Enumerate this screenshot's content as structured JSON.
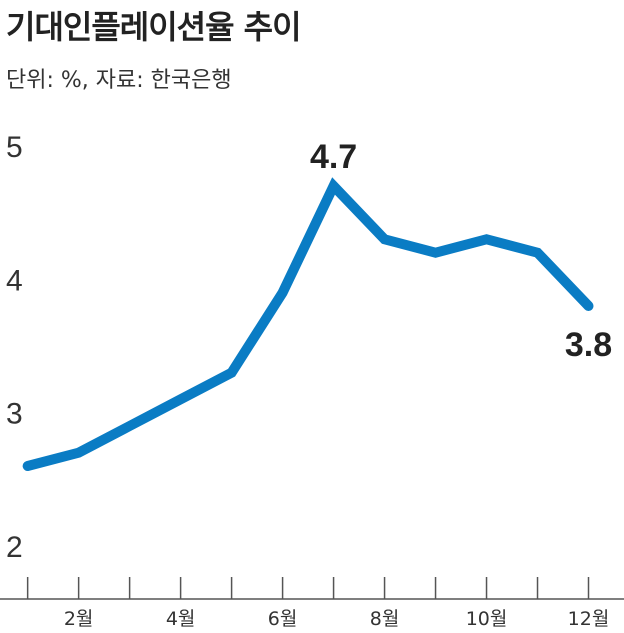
{
  "header": {
    "title": "기대인플레이션율 추이",
    "subtitle": "단위: %, 자료: 한국은행"
  },
  "chart_data": {
    "type": "line",
    "title": "기대인플레이션율 추이",
    "unit_source": "단위: %, 자료: 한국은행",
    "x": [
      1,
      2,
      3,
      4,
      5,
      6,
      7,
      8,
      9,
      10,
      11,
      12
    ],
    "x_tick_values": [
      2,
      4,
      6,
      8,
      10,
      12
    ],
    "x_tick_labels": [
      "2월",
      "4월",
      "6월",
      "8월",
      "10월",
      "12월"
    ],
    "series": [
      {
        "values": [
          2.6,
          2.7,
          2.9,
          3.1,
          3.3,
          3.9,
          4.7,
          4.3,
          4.2,
          4.3,
          4.2,
          3.8
        ]
      }
    ],
    "y_ticks": [
      2,
      3,
      4,
      5
    ],
    "ylim": [
      2,
      5
    ],
    "xlim": [
      0.85,
      12.5
    ],
    "annotations": [
      {
        "x": 7,
        "y": 4.7,
        "text": "4.7"
      },
      {
        "x": 12,
        "y": 3.8,
        "text": "3.8"
      }
    ],
    "line_color": "#0a7cc4",
    "grid": false
  }
}
